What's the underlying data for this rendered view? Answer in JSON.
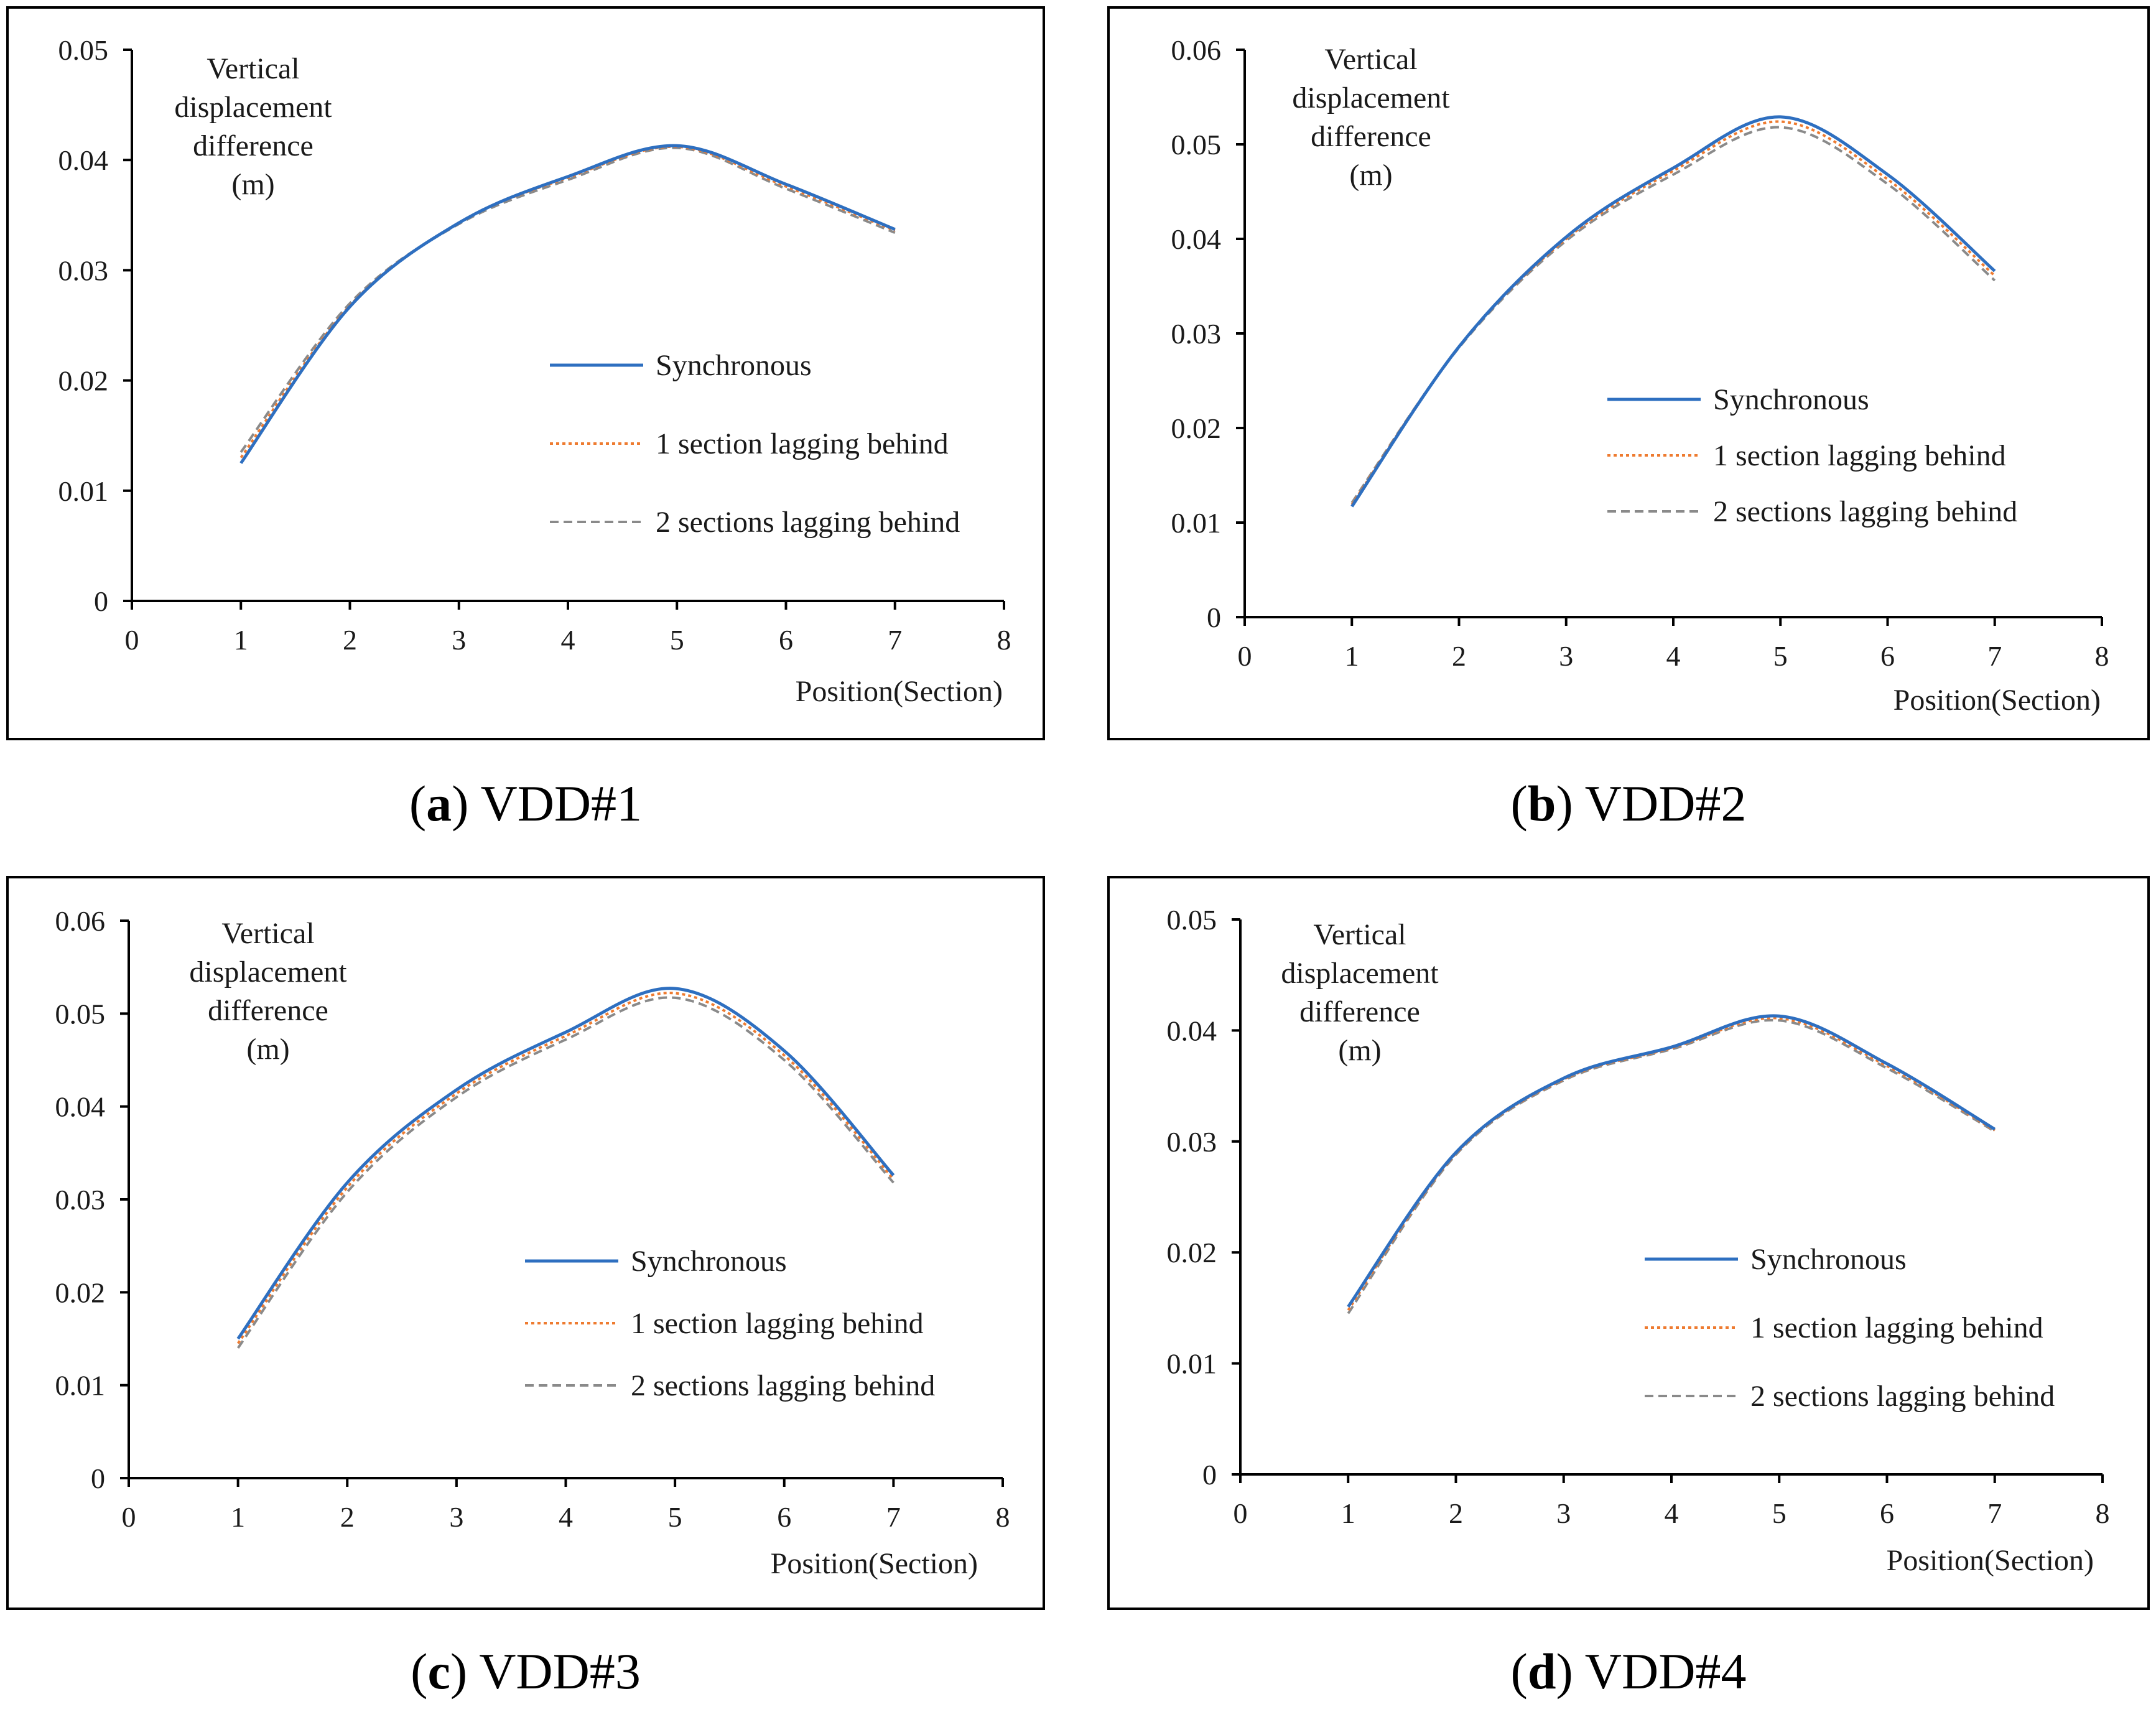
{
  "legend_colors": {
    "Synchronous": "#2e6fc0",
    "1 section lagging behind": "#ee7b30",
    "2 sections lagging behind": "#8a8a8a"
  },
  "chart_data": [
    {
      "type": "line",
      "panel_letter": "a",
      "panel_name": "VDD#1",
      "ylabel_lines": [
        "Vertical",
        "displacement",
        "difference",
        "(m)"
      ],
      "xlabel": "Position(Section)",
      "xlim": [
        0,
        8
      ],
      "ylim": [
        0,
        0.05
      ],
      "x_ticks": [
        "0",
        "1",
        "2",
        "3",
        "4",
        "5",
        "6",
        "7",
        "8"
      ],
      "y_ticks": [
        "0",
        "0.01",
        "0.02",
        "0.03",
        "0.04",
        "0.05"
      ],
      "legend_position": "center-right",
      "x": [
        1,
        2,
        3,
        4,
        5,
        6,
        7
      ],
      "series": [
        {
          "name": "Synchronous",
          "values": [
            0.0125,
            0.0267,
            0.0343,
            0.0385,
            0.0413,
            0.0378,
            0.0337
          ]
        },
        {
          "name": "1 section lagging behind",
          "values": [
            0.013,
            0.0268,
            0.0343,
            0.0384,
            0.0412,
            0.0376,
            0.0336
          ]
        },
        {
          "name": "2 sections lagging behind",
          "values": [
            0.0135,
            0.027,
            0.0342,
            0.0382,
            0.0411,
            0.0374,
            0.0334
          ]
        }
      ]
    },
    {
      "type": "line",
      "panel_letter": "b",
      "panel_name": "VDD#2",
      "ylabel_lines": [
        "Vertical",
        "displacement",
        "difference",
        "(m)"
      ],
      "xlabel": "Position(Section)",
      "xlim": [
        0,
        8
      ],
      "ylim": [
        0,
        0.06
      ],
      "x_ticks": [
        "0",
        "1",
        "2",
        "3",
        "4",
        "5",
        "6",
        "7",
        "8"
      ],
      "y_ticks": [
        "0",
        "0.01",
        "0.02",
        "0.03",
        "0.04",
        "0.05",
        "0.06"
      ],
      "legend_position": "center-right",
      "x": [
        1,
        2,
        3,
        4,
        5,
        6,
        7
      ],
      "series": [
        {
          "name": "Synchronous",
          "values": [
            0.0117,
            0.0286,
            0.0402,
            0.0475,
            0.0529,
            0.0468,
            0.0366
          ]
        },
        {
          "name": "1 section lagging behind",
          "values": [
            0.0119,
            0.0286,
            0.04,
            0.0472,
            0.0524,
            0.0463,
            0.0361
          ]
        },
        {
          "name": "2 sections lagging behind",
          "values": [
            0.0121,
            0.0285,
            0.0398,
            0.0468,
            0.0518,
            0.0458,
            0.0356
          ]
        }
      ]
    },
    {
      "type": "line",
      "panel_letter": "c",
      "panel_name": "VDD#3",
      "ylabel_lines": [
        "Vertical",
        "displacement",
        "difference",
        "(m)"
      ],
      "xlabel": "Position(Section)",
      "xlim": [
        0,
        8
      ],
      "ylim": [
        0,
        0.06
      ],
      "x_ticks": [
        "0",
        "1",
        "2",
        "3",
        "4",
        "5",
        "6",
        "7",
        "8"
      ],
      "y_ticks": [
        "0",
        "0.01",
        "0.02",
        "0.03",
        "0.04",
        "0.05",
        "0.06"
      ],
      "legend_position": "center-right",
      "x": [
        1,
        2,
        3,
        4,
        5,
        6,
        7
      ],
      "series": [
        {
          "name": "Synchronous",
          "values": [
            0.015,
            0.0318,
            0.0418,
            0.048,
            0.0527,
            0.046,
            0.0326
          ]
        },
        {
          "name": "1 section lagging behind",
          "values": [
            0.0145,
            0.0313,
            0.0414,
            0.0476,
            0.0522,
            0.0455,
            0.0322
          ]
        },
        {
          "name": "2 sections lagging behind",
          "values": [
            0.014,
            0.0308,
            0.041,
            0.0472,
            0.0517,
            0.045,
            0.0318
          ]
        }
      ]
    },
    {
      "type": "line",
      "panel_letter": "d",
      "panel_name": "VDD#4",
      "ylabel_lines": [
        "Vertical",
        "displacement",
        "difference",
        "(m)"
      ],
      "xlabel": "Position(Section)",
      "xlim": [
        0,
        8
      ],
      "ylim": [
        0,
        0.05
      ],
      "x_ticks": [
        "0",
        "1",
        "2",
        "3",
        "4",
        "5",
        "6",
        "7",
        "8"
      ],
      "y_ticks": [
        "0",
        "0.01",
        "0.02",
        "0.03",
        "0.04",
        "0.05"
      ],
      "legend_position": "center-right",
      "x": [
        1,
        2,
        3,
        4,
        5,
        6,
        7
      ],
      "series": [
        {
          "name": "Synchronous",
          "values": [
            0.0151,
            0.029,
            0.0357,
            0.0385,
            0.0413,
            0.037,
            0.0311
          ]
        },
        {
          "name": "1 section lagging behind",
          "values": [
            0.0148,
            0.0289,
            0.0356,
            0.0384,
            0.0411,
            0.0368,
            0.031
          ]
        },
        {
          "name": "2 sections lagging behind",
          "values": [
            0.0145,
            0.0288,
            0.0355,
            0.0383,
            0.0409,
            0.0366,
            0.0309
          ]
        }
      ]
    }
  ]
}
